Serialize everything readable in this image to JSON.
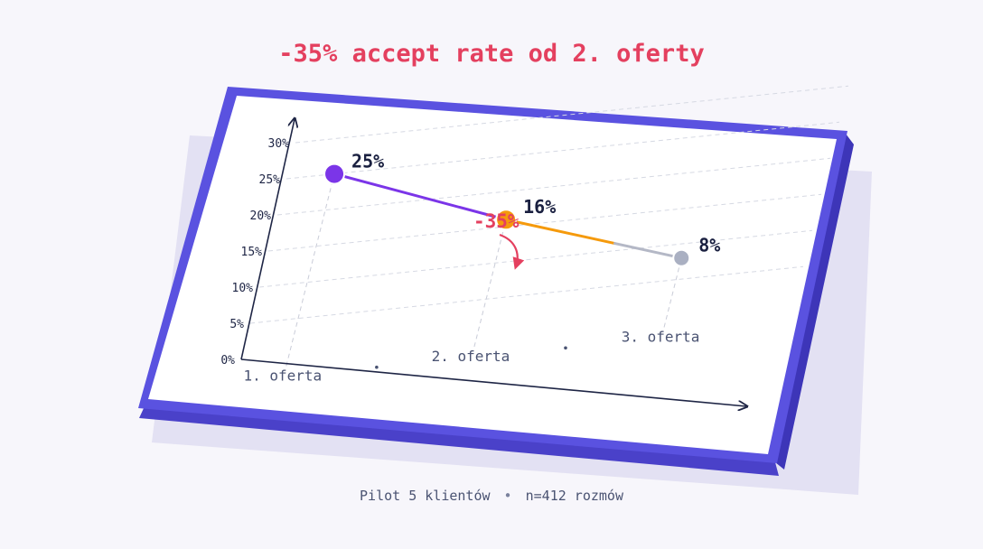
{
  "headline": "-35% accept rate od 2. oferty",
  "footer": {
    "left": "Pilot 5 klientów",
    "separator": "•",
    "right": "n=412 rozmów"
  },
  "chart_data": {
    "type": "line",
    "categories": [
      "1. oferta",
      "2. oferta",
      "3. oferta"
    ],
    "values": [
      25,
      16,
      8
    ],
    "value_labels": [
      "25%",
      "16%",
      "8%"
    ],
    "point_colors": [
      "#7b35e8",
      "#f59a0c",
      "#aab0c2"
    ],
    "segment_colors": [
      "#7b35e8",
      "#f59a0c"
    ],
    "tail_color": "#b4b8c6",
    "ylim": [
      0,
      30
    ],
    "yticks": [
      "0%",
      "5%",
      "10%",
      "15%",
      "20%",
      "25%",
      "30%"
    ],
    "grid": true,
    "annotation": {
      "text": "-35%",
      "color": "#e4405f"
    },
    "frame_color": "#5a52e0",
    "xlabel": "",
    "ylabel": ""
  }
}
